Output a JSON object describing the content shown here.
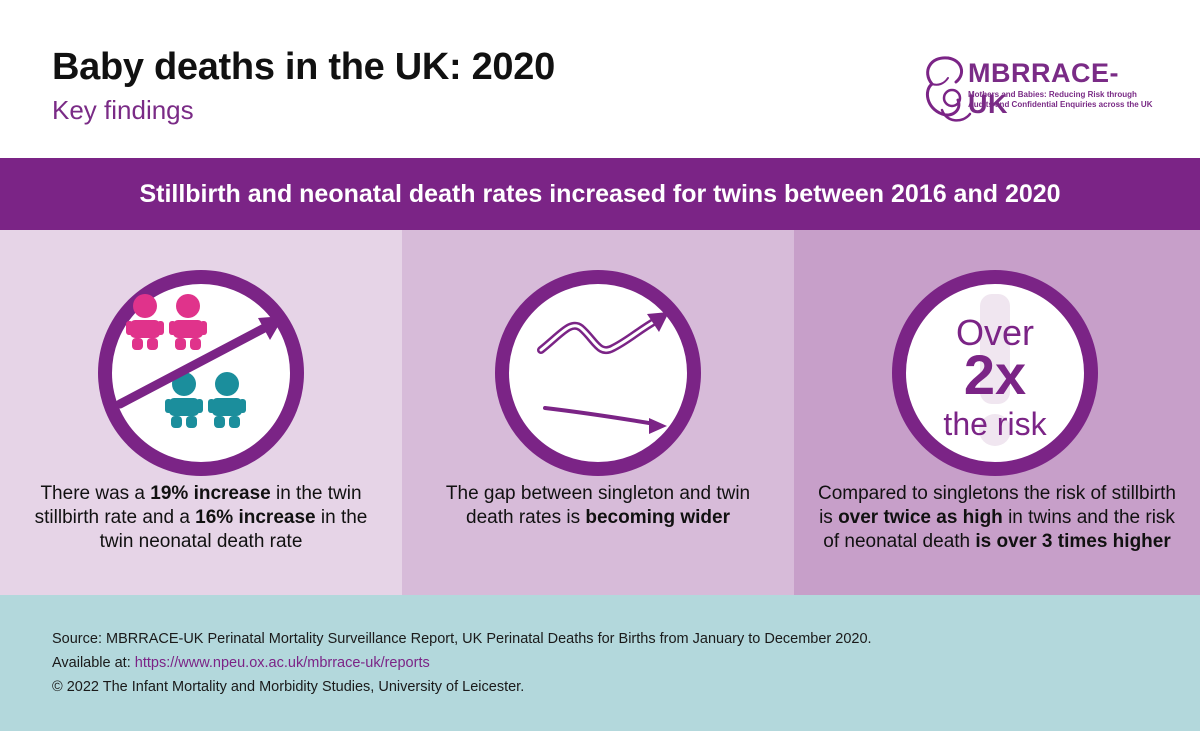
{
  "header": {
    "title": "Baby deaths in the UK: 2020",
    "subtitle": "Key findings"
  },
  "logo": {
    "name": "MBRRACE-UK",
    "tagline": "Mothers and Babies: Reducing Risk through Audits and Confidential Enquiries across the UK"
  },
  "banner": {
    "text": "Stillbirth and neonatal death rates increased for twins between 2016 and 2020"
  },
  "colors": {
    "purple": "#7b2486",
    "pink": "#e0338b",
    "teal": "#1b8e9c",
    "footer_bg": "#b3d8dc"
  },
  "panels": [
    {
      "icon": "twins-increase-icon",
      "caption": {
        "t1": "There was a ",
        "b1": "19% increase",
        "t2": " in the twin stillbirth rate and a ",
        "b2": "16% increase",
        "t3": " in the twin neonatal death rate"
      }
    },
    {
      "icon": "diverging-trend-icon",
      "caption": {
        "t1": "The gap between singleton and twin death rates is ",
        "b1": "becoming wider"
      }
    },
    {
      "icon": "risk-multiplier-icon",
      "badge": {
        "line1": "Over",
        "line2": "2x",
        "line3": "the risk"
      },
      "caption": {
        "t1": "Compared to singletons the risk of stillbirth is ",
        "b1": "over twice as high",
        "t2": " in twins and the risk of neonatal death ",
        "b2": "is over 3 times higher"
      }
    }
  ],
  "footer": {
    "source": "Source: MBRRACE-UK Perinatal Mortality Surveillance Report, UK Perinatal Deaths for Births from January to December 2020.",
    "available_label": "Available at: ",
    "url": "https://www.npeu.ox.ac.uk/mbrrace-uk/reports",
    "copyright": "© 2022 The Infant Mortality and Morbidity Studies, University of Leicester."
  }
}
